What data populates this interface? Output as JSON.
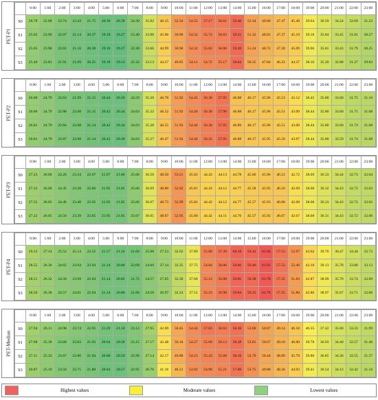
{
  "hours": [
    "0:00",
    "1:00",
    "2:00",
    "3:00",
    "4:00",
    "5:00",
    "6:00",
    "7:00",
    "8:00",
    "9:00",
    "10:00",
    "11:00",
    "12:00",
    "13:00",
    "14:00",
    "15:00",
    "16:00",
    "17:00",
    "18:00",
    "19:00",
    "20:00",
    "21:00",
    "22:00",
    "23:00"
  ],
  "blocks": [
    {
      "label": "PET-P1",
      "rows": [
        {
          "name": "S0",
          "values": [
            26.78,
            25.08,
            23.74,
            22.43,
            21.75,
            20.3,
            20.39,
            24.3,
            35.02,
            46.15,
            52.54,
            54.55,
            57.17,
            56.61,
            59.4,
            51.34,
            49.0,
            47.47,
            45.48,
            39.64,
            36.59,
            34.24,
            32.69,
            31.23
          ]
        },
        {
          "name": "S1",
          "values": [
            25.65,
            23.96,
            22.07,
            21.14,
            20.37,
            19.1,
            19.27,
            23.4,
            33.98,
            45.06,
            50.96,
            54.32,
            55.72,
            56.03,
            59.21,
            51.32,
            48.81,
            47.37,
            45.19,
            39.1,
            35.84,
            33.45,
            31.81,
            30.27
          ]
        },
        {
          "name": "S2",
          "values": [
            25.65,
            23.96,
            22.01,
            21.16,
            20.38,
            19.1,
            19.27,
            22.38,
            33.66,
            44.99,
            50.96,
            54.32,
            55.82,
            56.06,
            59.2,
            51.24,
            48.72,
            47.28,
            45.09,
            39.06,
            35.81,
            33.43,
            31.79,
            30.25
          ]
        },
        {
          "name": "S3",
          "values": [
            25.4,
            23.81,
            21.91,
            21.09,
            20.35,
            19.1,
            19.13,
            22.32,
            33.13,
            44.27,
            49.85,
            54.11,
            54.72,
            55.17,
            58.84,
            50.25,
            47.84,
            46.33,
            44.27,
            38.16,
            35.2,
            32.88,
            31.27,
            29.83
          ]
        }
      ]
    },
    {
      "label": "PET-P2",
      "rows": [
        {
          "name": "S0",
          "values": [
            26.0,
            24.79,
            22.63,
            21.99,
            21.15,
            20.44,
            20.29,
            24.59,
            35.2,
            46.78,
            51.92,
            54.45,
            56.3,
            57.95,
            46.88,
            46.17,
            45.96,
            45.53,
            43.12,
            38.45,
            35.8,
            33.6,
            31.75,
            31.1
          ]
        },
        {
          "name": "S1",
          "values": [
            26.0,
            24.79,
            22.88,
            22.08,
            21.15,
            20.42,
            20.34,
            24.63,
            35.32,
            46.52,
            51.92,
            54.46,
            56.3,
            57.96,
            46.88,
            46.17,
            45.96,
            45.51,
            43.09,
            38.44,
            35.8,
            33.6,
            31.75,
            31.08
          ]
        },
        {
          "name": "S2",
          "values": [
            26.01,
            24.79,
            22.84,
            22.08,
            21.14,
            20.42,
            20.34,
            24.63,
            35.28,
            46.55,
            51.93,
            54.46,
            56.3,
            57.95,
            46.89,
            46.17,
            45.96,
            45.51,
            43.08,
            38.44,
            35.8,
            33.6,
            31.74,
            31.08
          ]
        },
        {
          "name": "S3",
          "values": [
            26.01,
            24.79,
            22.87,
            22.08,
            21.14,
            20.42,
            20.3,
            24.63,
            35.27,
            46.47,
            51.93,
            54.46,
            56.35,
            57.95,
            46.88,
            46.17,
            45.95,
            45.5,
            43.07,
            38.44,
            35.8,
            33.59,
            31.74,
            31.08
          ]
        }
      ]
    },
    {
      "label": "PET-P3",
      "rows": [
        {
          "name": "S0",
          "values": [
            27.23,
            26.06,
            24.26,
            23.34,
            22.67,
            21.97,
            21.86,
            25.06,
            36.56,
            48.5,
            53.21,
            45.82,
            44.43,
            44.13,
            44.78,
            45.6,
            45.96,
            46.12,
            42.72,
            38.69,
            36.33,
            34.44,
            32.73,
            32.04
          ]
        },
        {
          "name": "S1",
          "values": [
            27.22,
            26.06,
            24.45,
            23.38,
            22.66,
            21.95,
            21.85,
            25.06,
            36.69,
            48.8,
            52.92,
            45.81,
            44.43,
            44.12,
            44.77,
            45.58,
            45.95,
            46.1,
            42.69,
            38.68,
            36.32,
            34.43,
            32.72,
            32.03
          ]
        },
        {
          "name": "S2",
          "values": [
            27.22,
            26.05,
            24.46,
            23.4,
            22.65,
            21.95,
            21.85,
            25.06,
            36.67,
            48.73,
            52.99,
            45.82,
            44.42,
            44.12,
            44.77,
            45.57,
            45.93,
            46.08,
            42.68,
            38.68,
            36.33,
            34.43,
            32.72,
            32.02
          ]
        },
        {
          "name": "S3",
          "values": [
            27.22,
            26.05,
            24.5,
            23.39,
            22.65,
            21.95,
            21.85,
            25.07,
            36.65,
            48.67,
            52.95,
            45.8,
            44.42,
            44.11,
            44.76,
            45.57,
            45.92,
            46.07,
            42.67,
            38.68,
            36.31,
            34.43,
            32.72,
            32.0
          ]
        }
      ]
    },
    {
      "label": "PET-P4",
      "rows": [
        {
          "name": "S0",
          "values": [
            29.33,
            27.14,
            25.52,
            25.14,
            23.52,
            21.57,
            21.24,
            21.69,
            25.08,
            27.53,
            32.62,
            37.89,
            55.8,
            57.39,
            60.18,
            59.42,
            61.94,
            57.53,
            52.97,
            43.62,
            39.7,
            36.47,
            34.44,
            32.73
          ]
        },
        {
          "name": "S1",
          "values": [
            28.55,
            26.36,
            24.65,
            23.94,
            22.94,
            21.14,
            20.8,
            22.09,
            24.6,
            27.14,
            32.35,
            37.75,
            54.84,
            56.86,
            59.66,
            59.4,
            61.91,
            57.53,
            52.46,
            43.1,
            39.13,
            35.78,
            33.8,
            32.13
          ]
        },
        {
          "name": "S2",
          "values": [
            28.51,
            26.32,
            24.58,
            23.99,
            22.94,
            21.14,
            20.82,
            21.72,
            24.57,
            27.05,
            32.3,
            37.68,
            55.12,
            56.88,
            59.85,
            59.38,
            61.78,
            57.35,
            51.83,
            42.87,
            38.99,
            35.7,
            33.74,
            32.09
          ]
        },
        {
          "name": "S3",
          "values": [
            28.5,
            26.3,
            24.57,
            24.01,
            22.94,
            21.14,
            20.8,
            21.68,
            24.58,
            26.97,
            32.24,
            37.51,
            55.23,
            56.98,
            59.84,
            59.35,
            61.79,
            57.35,
            51.8,
            42.86,
            38.97,
            35.67,
            33.71,
            32.06
          ]
        }
      ]
    },
    {
      "label": "PET-Median",
      "rows": [
        {
          "name": "S0",
          "values": [
            27.94,
            26.11,
            24.98,
            23.74,
            22.95,
            21.29,
            21.1,
            23.12,
            27.95,
            42.69,
            50.45,
            54.44,
            57.03,
            56.63,
            58.38,
            53.8,
            50.87,
            49.14,
            46.18,
            40.35,
            37.42,
            35.0,
            33.33,
            31.99
          ]
        },
        {
          "name": "S1",
          "values": [
            27.08,
            25.39,
            23.68,
            22.83,
            21.93,
            20.64,
            20.58,
            23.15,
            27.17,
            42.48,
            50.1,
            54.27,
            55.69,
            56.12,
            58.28,
            53.81,
            50.67,
            49.1,
            46.0,
            39.78,
            36.93,
            34.4,
            32.57,
            31.4
          ]
        },
        {
          "name": "S2",
          "values": [
            27.11,
            25.33,
            23.67,
            22.86,
            21.94,
            20.68,
            20.59,
            22.99,
            27.14,
            42.17,
            49.88,
            54.23,
            55.43,
            55.68,
            58.16,
            53.79,
            50.44,
            48.89,
            45.79,
            39.8,
            36.85,
            34.36,
            32.55,
            31.37
          ]
        },
        {
          "name": "S3",
          "values": [
            26.87,
            25.19,
            23.56,
            22.75,
            21.88,
            20.64,
            20.57,
            22.95,
            26.76,
            41.16,
            48.21,
            53.92,
            54.9,
            55.21,
            57.8,
            53.75,
            49.88,
            48.36,
            44.93,
            39.41,
            36.54,
            34.12,
            32.42,
            31.16
          ]
        }
      ]
    }
  ],
  "legend": [
    {
      "label": "Highest values",
      "color": "#f0605c"
    },
    {
      "label": "Moderate values",
      "color": "#f5ee3a"
    },
    {
      "label": "Lowest values",
      "color": "#8fd07c"
    }
  ],
  "scale": {
    "low": 19.1,
    "mid": 40.5,
    "high": 61.94
  }
}
